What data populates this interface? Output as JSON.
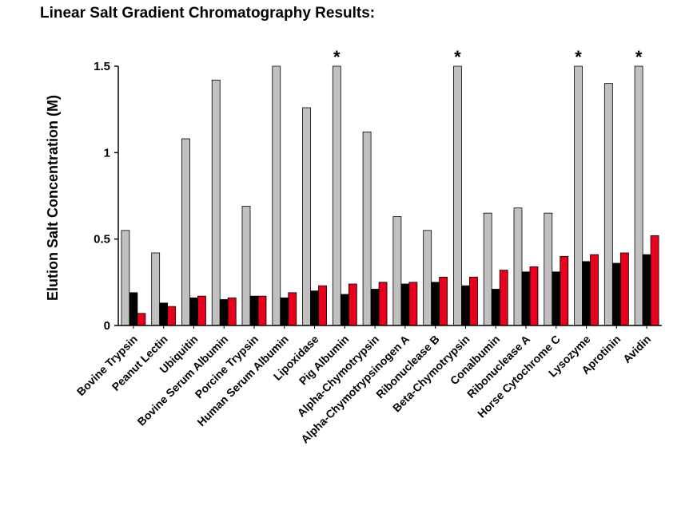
{
  "chart_data": {
    "type": "bar",
    "title": "Linear Salt Gradient Chromatography Results:",
    "xlabel": "",
    "ylabel": "Elution Salt Concentration (M)",
    "ylim": [
      0,
      1.5
    ],
    "yticks": [
      {
        "value": 0,
        "label": "0"
      },
      {
        "value": 0.5,
        "label": "0.5"
      },
      {
        "value": 1,
        "label": "1"
      },
      {
        "value": 1.5,
        "label": "1.5"
      }
    ],
    "grid": false,
    "legend": "none",
    "categories": [
      "Bovine Trypsin",
      "Peanut Lectin",
      "Ubiquitin",
      "Bovine Serum Albumin",
      "Porcine Trypsin",
      "Human Serum Albumin",
      "Lipoxidase",
      "Pig Albumin",
      "Alpha-Chymotrypsin",
      "Alpha-Chymotrypsinogen A",
      "Ribonuclease B",
      "Beta-Chymotrypsin",
      "Conalbumin",
      "Ribonuclease A",
      "Horse Cytochrome C",
      "Lysozyme",
      "Aprotinin",
      "Avidin"
    ],
    "series": [
      {
        "color": "#c0c0c0",
        "values": [
          0.55,
          0.42,
          1.08,
          1.42,
          0.69,
          1.5,
          1.26,
          1.5,
          1.12,
          0.63,
          0.55,
          1.5,
          0.65,
          0.68,
          0.65,
          1.5,
          1.4,
          1.5
        ]
      },
      {
        "color": "#000000",
        "values": [
          0.19,
          0.13,
          0.16,
          0.15,
          0.17,
          0.16,
          0.2,
          0.18,
          0.21,
          0.24,
          0.25,
          0.23,
          0.21,
          0.31,
          0.31,
          0.37,
          0.36,
          0.41
        ]
      },
      {
        "color": "#e8001c",
        "values": [
          0.07,
          0.11,
          0.17,
          0.16,
          0.17,
          0.19,
          0.23,
          0.24,
          0.25,
          0.25,
          0.28,
          0.28,
          0.32,
          0.34,
          0.4,
          0.41,
          0.42,
          0.52
        ]
      }
    ],
    "annotations": [
      {
        "category": "Pig Albumin",
        "text": "*"
      },
      {
        "category": "Beta-Chymotrypsin",
        "text": "*"
      },
      {
        "category": "Lysozyme",
        "text": "*"
      },
      {
        "category": "Avidin",
        "text": "*"
      }
    ]
  }
}
